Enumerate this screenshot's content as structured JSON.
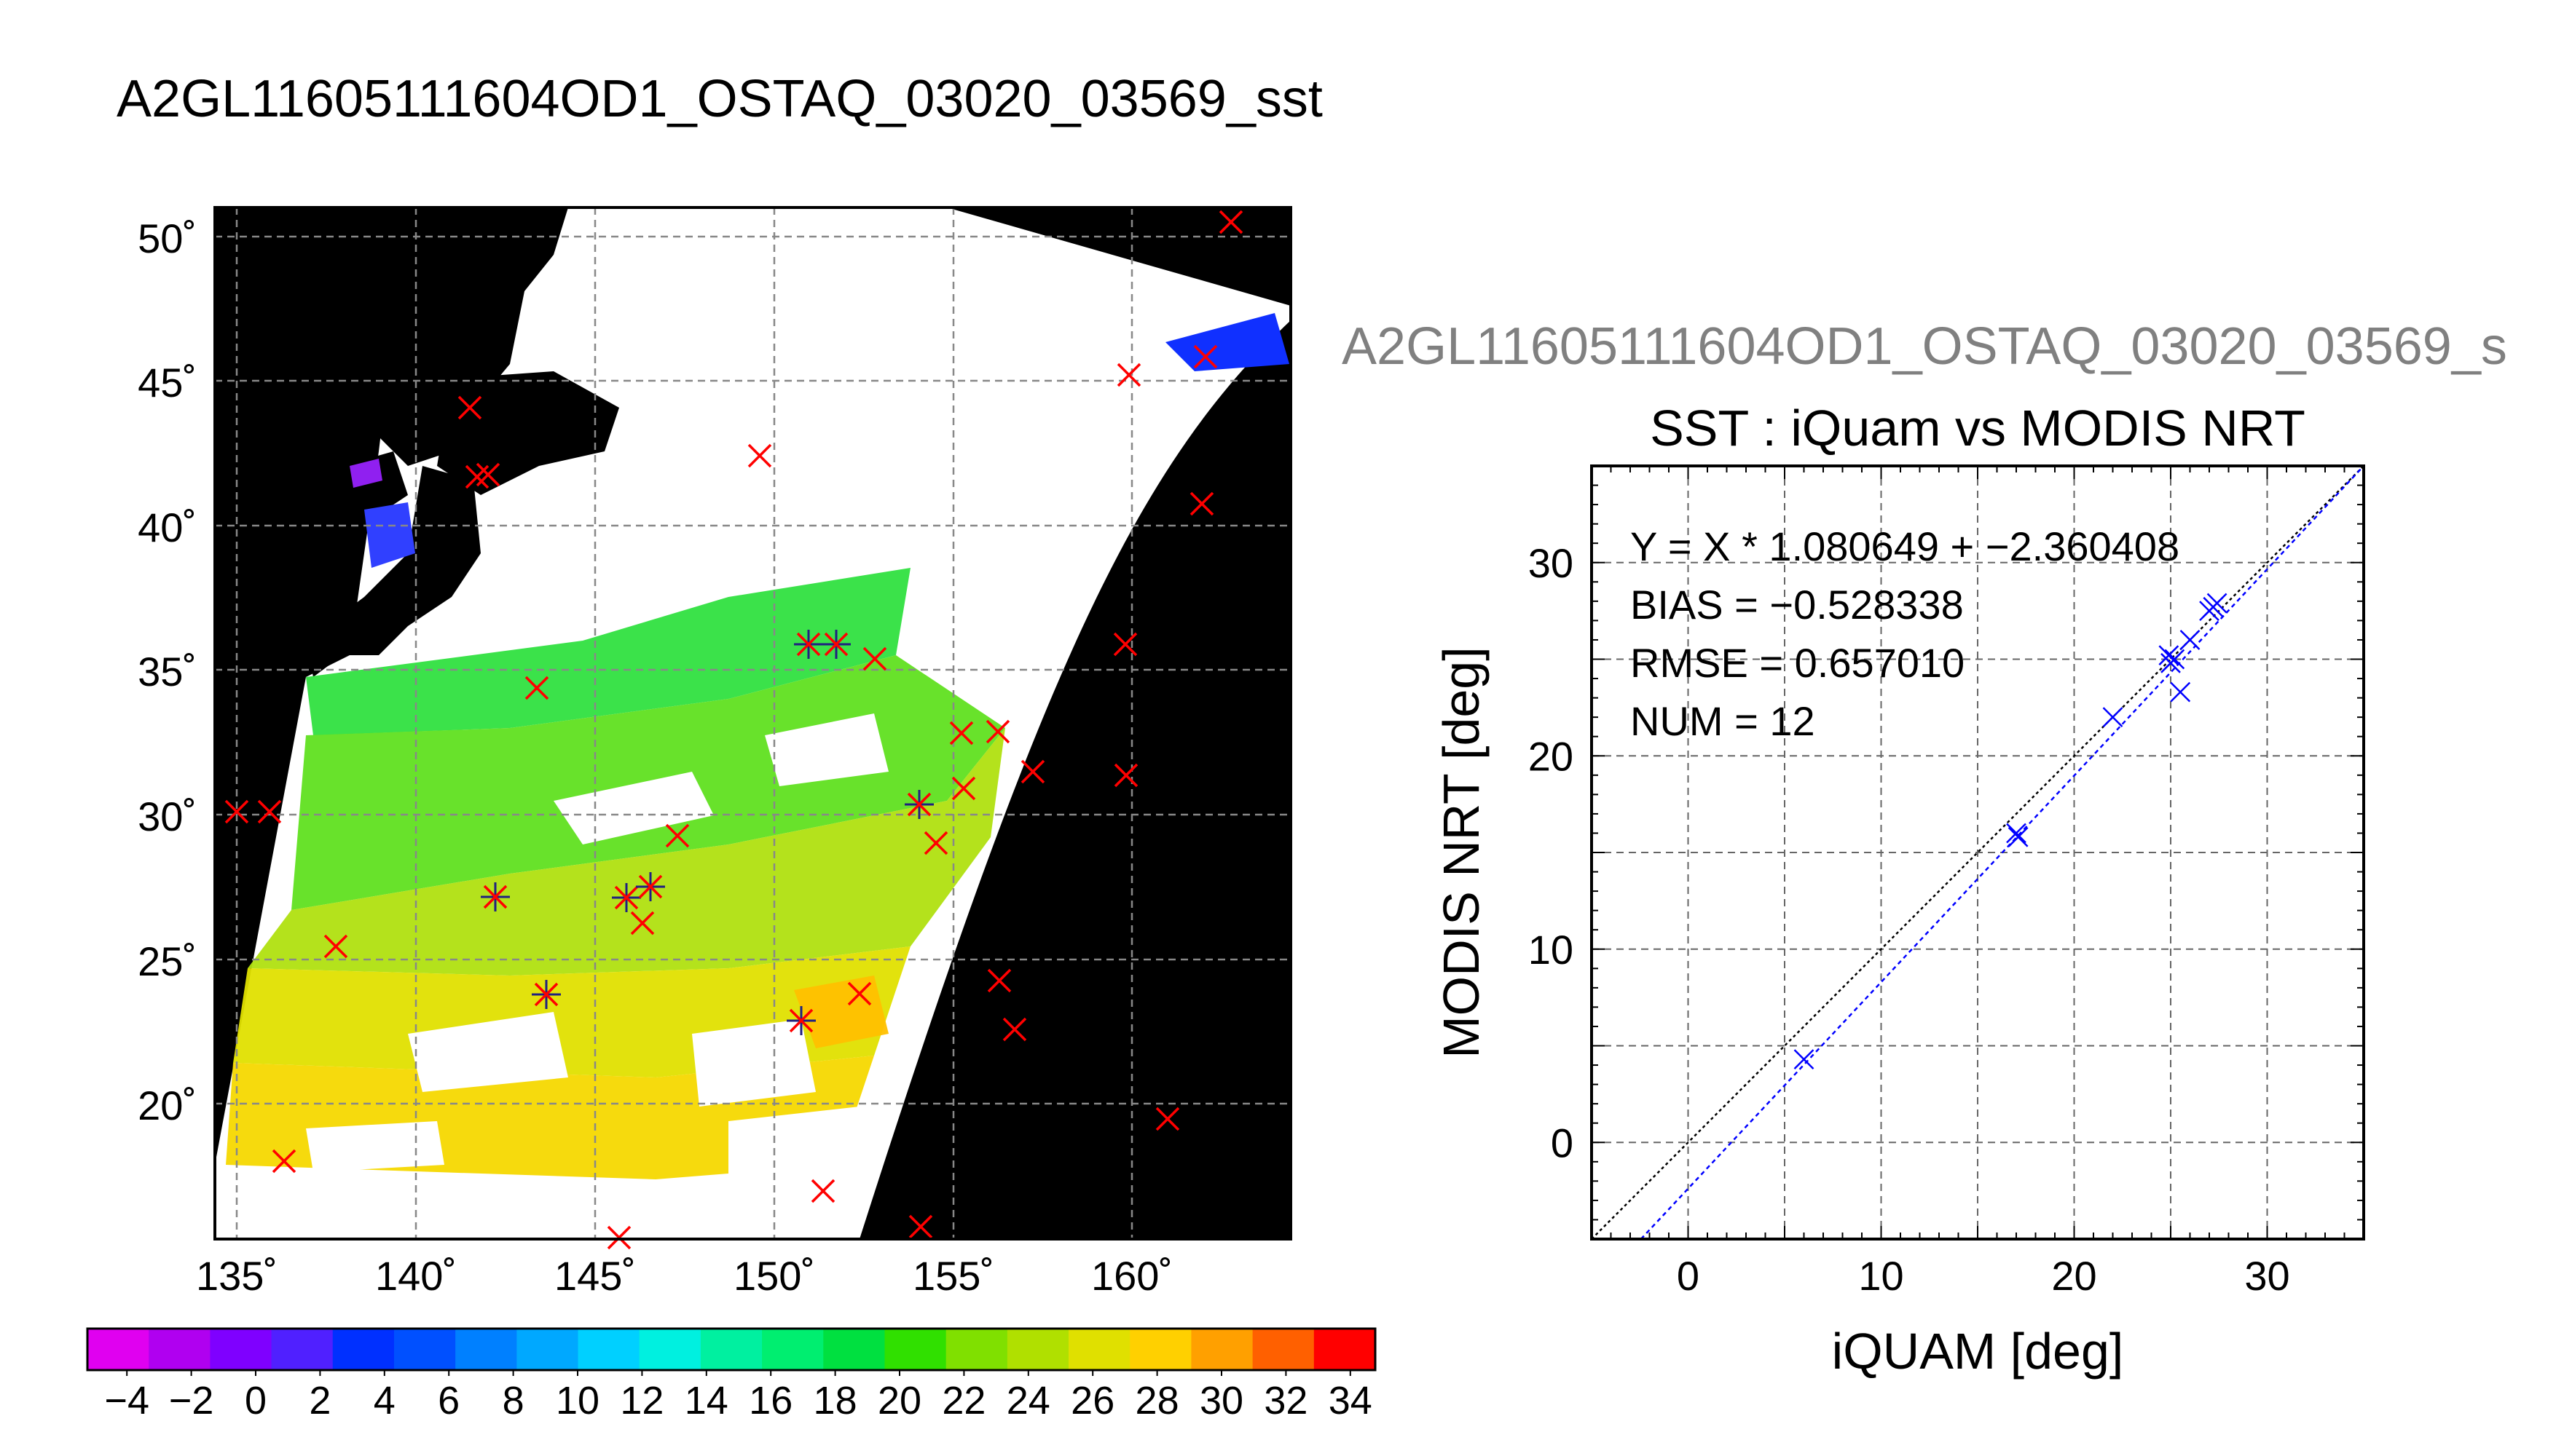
{
  "main_title": "A2GL11605111604OD1_OSTAQ_03020_03569_sst",
  "map": {
    "lat_ticks": [
      "50˚",
      "45˚",
      "40˚",
      "35˚",
      "30˚",
      "25˚",
      "20˚"
    ],
    "lon_ticks": [
      "135˚",
      "140˚",
      "145˚",
      "150˚",
      "155˚",
      "160˚"
    ],
    "colorbar_labels": [
      "−4",
      "−2",
      "0",
      "2",
      "4",
      "6",
      "8",
      "10",
      "12",
      "14",
      "16",
      "18",
      "20",
      "22",
      "24",
      "26",
      "28",
      "30",
      "32",
      "34"
    ],
    "colorbar_colors": [
      "#e000f0",
      "#b000f0",
      "#7f00ff",
      "#5020ff",
      "#0030ff",
      "#0050ff",
      "#0080ff",
      "#00a8ff",
      "#00d0ff",
      "#00f0e0",
      "#00f0a0",
      "#00ee70",
      "#00e040",
      "#30e000",
      "#80e000",
      "#b0e000",
      "#e0e000",
      "#ffd000",
      "#ffa000",
      "#ff6000",
      "#ff0000"
    ]
  },
  "chart_data": {
    "type": "scatter",
    "overlay_title": "A2GL11605111604OD1_OSTAQ_03020_03569_s",
    "title": "SST : iQuam vs MODIS NRT",
    "xlabel": "iQUAM [deg]",
    "ylabel": "MODIS NRT [deg]",
    "xlim": [
      -5,
      35
    ],
    "ylim": [
      -5,
      35
    ],
    "x_ticks": [
      "0",
      "10",
      "20",
      "30"
    ],
    "y_ticks": [
      "0",
      "10",
      "20",
      "30"
    ],
    "annotations": [
      "Y = X * 1.080649 + −2.360408",
      "BIAS = −0.528338",
      "RMSE = 0.657010",
      "NUM = 12"
    ],
    "fit": {
      "slope": 1.080649,
      "intercept": -2.360408
    },
    "series": [
      {
        "x": [
          6.0,
          17.0,
          22.0,
          25.0,
          25.2,
          25.5,
          26.0,
          27.0,
          27.2,
          27.4,
          24.9,
          17.1
        ],
        "y": [
          4.3,
          16.0,
          22.0,
          24.8,
          25.0,
          23.3,
          26.0,
          27.5,
          27.7,
          27.9,
          25.2,
          15.8
        ]
      }
    ]
  }
}
